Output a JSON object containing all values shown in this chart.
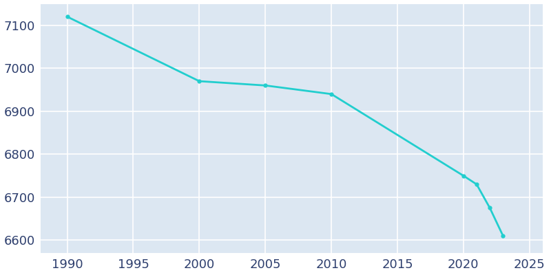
{
  "years": [
    1990,
    2000,
    2005,
    2010,
    2020,
    2021,
    2022,
    2023
  ],
  "population": [
    7120,
    6970,
    6960,
    6940,
    6750,
    6730,
    6675,
    6610
  ],
  "line_color": "#22cece",
  "marker": "o",
  "marker_size": 3.5,
  "bg_color": "#ffffff",
  "plot_bg_color": "#dce7f2",
  "grid_color": "#ffffff",
  "tick_color": "#2e3f6e",
  "ylim": [
    6570,
    7150
  ],
  "xlim": [
    1988,
    2026
  ],
  "yticks": [
    6600,
    6700,
    6800,
    6900,
    7000,
    7100
  ],
  "xticks": [
    1990,
    1995,
    2000,
    2005,
    2010,
    2015,
    2020,
    2025
  ],
  "linewidth": 2.0,
  "tick_labelsize": 13
}
